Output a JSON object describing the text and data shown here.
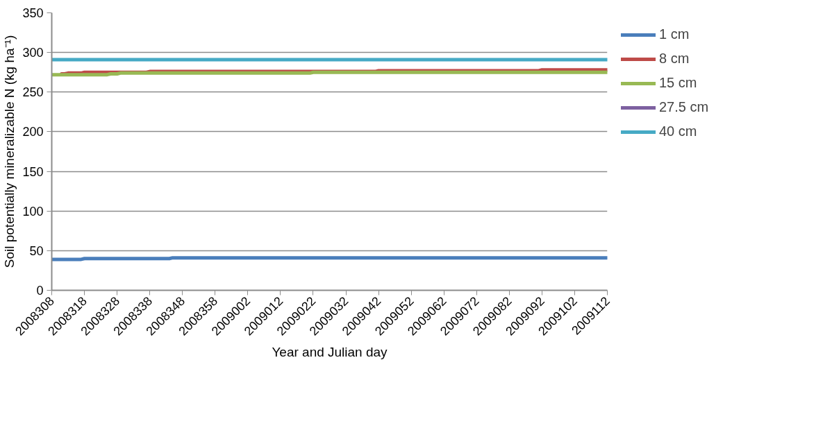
{
  "chart_data": {
    "type": "line",
    "xlabel": "Year and Julian day",
    "ylabel": "Soil potentially mineralizable N (kg ha⁻¹)",
    "categories": [
      "2008308",
      null,
      null,
      null,
      null,
      null,
      null,
      null,
      null,
      null,
      "2008318",
      null,
      null,
      null,
      null,
      null,
      null,
      null,
      null,
      null,
      "2008328",
      null,
      null,
      null,
      null,
      null,
      null,
      null,
      null,
      null,
      "2008338",
      null,
      null,
      null,
      null,
      null,
      null,
      null,
      null,
      null,
      "2008348",
      null,
      null,
      null,
      null,
      null,
      null,
      null,
      null,
      null,
      "2008358",
      null,
      null,
      null,
      null,
      null,
      null,
      null,
      null,
      null,
      "2009002",
      null,
      null,
      null,
      null,
      null,
      null,
      null,
      null,
      null,
      "2009012",
      null,
      null,
      null,
      null,
      null,
      null,
      null,
      null,
      null,
      "2009022",
      null,
      null,
      null,
      null,
      null,
      null,
      null,
      null,
      null,
      "2009032",
      null,
      null,
      null,
      null,
      null,
      null,
      null,
      null,
      null,
      "2009042",
      null,
      null,
      null,
      null,
      null,
      null,
      null,
      null,
      null,
      "2009052",
      null,
      null,
      null,
      null,
      null,
      null,
      null,
      null,
      null,
      "2009062",
      null,
      null,
      null,
      null,
      null,
      null,
      null,
      null,
      null,
      "2009072",
      null,
      null,
      null,
      null,
      null,
      null,
      null,
      null,
      null,
      "2009082",
      null,
      null,
      null,
      null,
      null,
      null,
      null,
      null,
      null,
      "2009092",
      null,
      null,
      null,
      null,
      null,
      null,
      null,
      null,
      null,
      "2009102",
      null,
      null,
      null,
      null,
      null,
      null,
      null,
      null,
      null,
      "2009112"
    ],
    "ylim": [
      0,
      350
    ],
    "yticks": [
      0,
      50,
      100,
      150,
      200,
      250,
      300,
      350
    ],
    "grid": "y",
    "legend": "right",
    "line_style": "solid",
    "series": [
      {
        "name": "1 cm",
        "color": "#4a7ebb",
        "values": [
          39,
          39,
          39,
          39,
          39,
          39,
          39,
          39,
          39,
          39,
          40,
          40,
          40,
          40,
          40,
          40,
          40,
          40,
          40,
          40,
          40,
          40,
          40,
          40,
          40,
          40,
          40,
          40,
          40,
          40,
          40,
          40,
          40,
          40,
          40,
          40,
          40,
          41,
          41,
          41,
          41,
          41,
          41,
          41,
          41,
          41,
          41,
          41,
          41,
          41,
          41,
          41,
          41,
          41,
          41,
          41,
          41,
          41,
          41,
          41,
          41,
          41,
          41,
          41,
          41,
          41,
          41,
          41,
          41,
          41,
          41,
          41,
          41,
          41,
          41,
          41,
          41,
          41,
          41,
          41,
          41,
          41,
          41,
          41,
          41,
          41,
          41,
          41,
          41,
          41,
          41,
          41,
          41,
          41,
          41,
          41,
          41,
          41,
          41,
          41,
          41,
          41,
          41,
          41,
          41,
          41,
          41,
          41,
          41,
          41,
          41,
          41,
          41,
          41,
          41,
          41,
          41,
          41,
          41,
          41,
          41,
          41,
          41,
          41,
          41,
          41,
          41,
          41,
          41,
          41,
          41,
          41,
          41,
          41,
          41,
          41,
          41,
          41,
          41,
          41,
          41,
          41,
          41,
          41,
          41,
          41,
          41,
          41,
          41,
          41,
          41,
          41,
          41,
          41,
          41,
          41,
          41,
          41,
          41,
          41,
          41,
          41,
          41,
          41,
          41,
          41,
          41,
          41,
          41,
          41,
          41
        ]
      },
      {
        "name": "8 cm",
        "color": "#be4b48",
        "values": [
          null,
          null,
          null,
          273,
          273,
          274,
          274,
          274,
          274,
          274,
          275,
          275,
          275,
          275,
          275,
          275,
          275,
          275,
          275,
          275,
          275,
          275,
          275,
          275,
          275,
          275,
          275,
          275,
          275,
          275,
          276,
          276,
          276,
          276,
          276,
          276,
          276,
          276,
          276,
          276,
          276,
          276,
          276,
          276,
          276,
          276,
          276,
          276,
          276,
          276,
          276,
          276,
          276,
          276,
          276,
          276,
          276,
          276,
          276,
          276,
          276,
          276,
          276,
          276,
          276,
          276,
          276,
          276,
          276,
          276,
          276,
          276,
          276,
          276,
          276,
          276,
          276,
          276,
          276,
          276,
          276,
          276,
          276,
          276,
          276,
          276,
          276,
          276,
          276,
          276,
          276,
          276,
          276,
          276,
          276,
          276,
          276,
          276,
          276,
          276,
          277,
          277,
          277,
          277,
          277,
          277,
          277,
          277,
          277,
          277,
          277,
          277,
          277,
          277,
          277,
          277,
          277,
          277,
          277,
          277,
          277,
          277,
          277,
          277,
          277,
          277,
          277,
          277,
          277,
          277,
          277,
          277,
          277,
          277,
          277,
          277,
          277,
          277,
          277,
          277,
          277,
          277,
          277,
          277,
          277,
          277,
          277,
          277,
          277,
          277,
          278,
          278,
          278,
          278,
          278,
          278,
          278,
          278,
          278,
          278,
          278,
          278,
          278,
          278,
          278,
          278,
          278,
          278,
          278,
          278,
          278
        ]
      },
      {
        "name": "15 cm",
        "color": "#98b954",
        "values": [
          272,
          272,
          272,
          272,
          272,
          272,
          272,
          272,
          272,
          272,
          272,
          272,
          272,
          272,
          272,
          272,
          272,
          272,
          273,
          273,
          273,
          274,
          274,
          274,
          274,
          274,
          274,
          274,
          274,
          274,
          274,
          274,
          274,
          274,
          274,
          274,
          274,
          274,
          274,
          274,
          274,
          274,
          274,
          274,
          274,
          274,
          274,
          274,
          274,
          274,
          274,
          274,
          274,
          274,
          274,
          274,
          274,
          274,
          274,
          274,
          274,
          274,
          274,
          274,
          274,
          274,
          274,
          274,
          274,
          274,
          274,
          274,
          274,
          274,
          274,
          274,
          274,
          274,
          274,
          274,
          275,
          275,
          275,
          275,
          275,
          275,
          275,
          275,
          275,
          275,
          275,
          275,
          275,
          275,
          275,
          275,
          275,
          275,
          275,
          275,
          275,
          275,
          275,
          275,
          275,
          275,
          275,
          275,
          275,
          275,
          275,
          275,
          275,
          275,
          275,
          275,
          275,
          275,
          275,
          275,
          275,
          275,
          275,
          275,
          275,
          275,
          275,
          275,
          275,
          275,
          275,
          275,
          275,
          275,
          275,
          275,
          275,
          275,
          275,
          275,
          275,
          275,
          275,
          275,
          275,
          275,
          275,
          275,
          275,
          275,
          275,
          275,
          275,
          275,
          275,
          275,
          275,
          275,
          275,
          275,
          275,
          275,
          275,
          275,
          275,
          275,
          275,
          275,
          275,
          275,
          275
        ]
      },
      {
        "name": "27.5 cm",
        "color": "#7d60a0",
        "values": [
          null,
          null,
          null,
          null,
          null,
          null,
          null,
          null,
          null,
          null,
          null,
          null,
          null,
          null,
          null,
          null,
          null,
          null,
          null,
          null,
          null,
          null,
          null,
          null,
          null,
          null,
          null,
          null,
          null,
          null,
          null,
          null,
          null,
          null,
          null,
          null,
          null,
          null,
          null,
          null,
          null,
          null,
          null,
          null,
          null,
          null,
          null,
          null,
          null,
          null,
          null,
          null,
          null,
          null,
          null,
          null,
          null,
          null,
          null,
          null,
          null,
          null,
          null,
          null,
          null,
          null,
          null,
          null,
          null,
          null,
          null,
          null,
          null,
          null,
          null,
          null,
          null,
          null,
          null,
          null,
          null,
          null,
          null,
          null,
          null,
          null,
          null,
          null,
          null,
          null,
          null,
          null,
          null,
          null,
          null,
          null,
          null,
          null,
          null,
          null,
          null,
          null,
          null,
          null,
          null,
          null,
          null,
          null,
          null,
          null,
          null,
          null,
          null,
          null,
          null,
          null,
          null,
          null,
          null,
          null,
          null,
          null,
          null,
          null,
          null,
          null,
          null,
          null,
          null,
          null,
          null,
          null,
          null,
          null,
          null,
          null,
          null,
          null,
          null,
          null,
          null,
          null,
          null,
          null,
          null,
          null,
          null,
          null,
          null,
          null,
          null,
          null,
          null,
          null,
          null,
          null,
          null,
          null,
          null,
          null,
          null,
          null,
          null,
          null,
          null,
          null,
          null,
          null,
          null,
          null,
          null
        ]
      },
      {
        "name": "40 cm",
        "color": "#46aac5",
        "values": [
          291,
          291,
          291,
          291,
          291,
          291,
          291,
          291,
          291,
          291,
          291,
          291,
          291,
          291,
          291,
          291,
          291,
          291,
          291,
          291,
          291,
          291,
          291,
          291,
          291,
          291,
          291,
          291,
          291,
          291,
          291,
          291,
          291,
          291,
          291,
          291,
          291,
          291,
          291,
          291,
          291,
          291,
          291,
          291,
          291,
          291,
          291,
          291,
          291,
          291,
          291,
          291,
          291,
          291,
          291,
          291,
          291,
          291,
          291,
          291,
          291,
          291,
          291,
          291,
          291,
          291,
          291,
          291,
          291,
          291,
          291,
          291,
          291,
          291,
          291,
          291,
          291,
          291,
          291,
          291,
          291,
          291,
          291,
          291,
          291,
          291,
          291,
          291,
          291,
          291,
          291,
          291,
          291,
          291,
          291,
          291,
          291,
          291,
          291,
          291,
          291,
          291,
          291,
          291,
          291,
          291,
          291,
          291,
          291,
          291,
          291,
          291,
          291,
          291,
          291,
          291,
          291,
          291,
          291,
          291,
          291,
          291,
          291,
          291,
          291,
          291,
          291,
          291,
          291,
          291,
          291,
          291,
          291,
          291,
          291,
          291,
          291,
          291,
          291,
          291,
          291,
          291,
          291,
          291,
          291,
          291,
          291,
          291,
          291,
          291,
          291,
          291,
          291,
          291,
          291,
          291,
          291,
          291,
          291,
          291,
          291,
          291,
          291,
          291,
          291,
          291,
          291,
          291,
          291,
          291,
          291
        ]
      }
    ]
  }
}
